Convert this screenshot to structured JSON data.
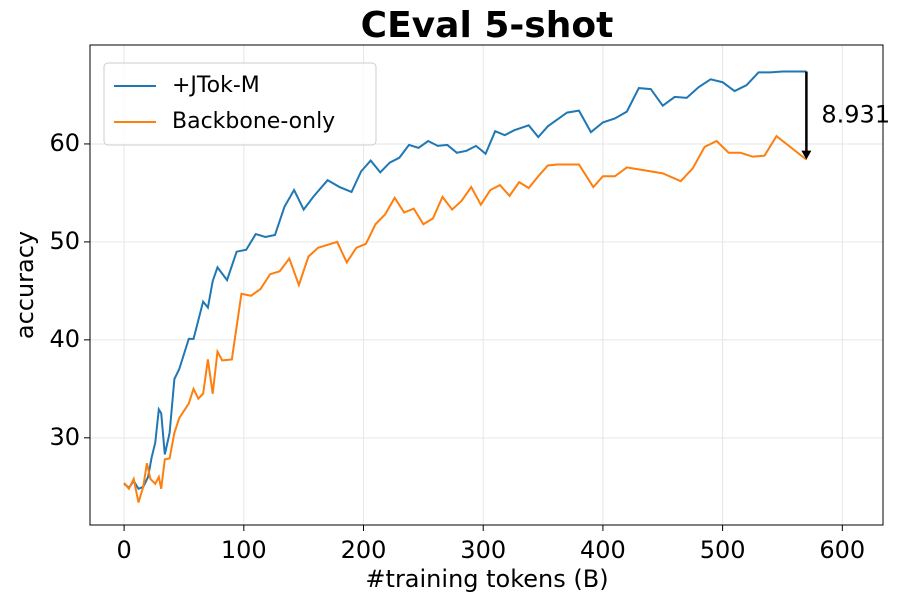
{
  "chart_data": {
    "type": "line",
    "title": "CEval 5-shot",
    "x_label": "#training tokens (B)",
    "y_label": "accuracy",
    "xlim": [
      -28.5,
      634
    ],
    "ylim": [
      21.1,
      70.1
    ],
    "xticks": [
      0,
      100,
      200,
      300,
      400,
      500,
      600
    ],
    "yticks": [
      30,
      40,
      50,
      60
    ],
    "grid": true,
    "legend": "upper left",
    "annotation": "8.931",
    "series": [
      {
        "name": "+JTok-M",
        "color": "#1f77b4",
        "x": [
          0,
          4,
          8,
          12,
          16,
          20,
          23,
          26,
          29,
          31,
          34,
          38,
          42,
          46,
          54,
          58,
          66,
          70,
          74,
          78,
          86,
          94,
          102,
          110,
          118,
          126,
          134,
          142,
          150,
          158,
          170,
          180,
          190,
          198,
          206,
          214,
          222,
          230,
          238,
          246,
          254,
          262,
          270,
          278,
          286,
          294,
          302,
          310,
          318,
          326,
          338,
          346,
          354,
          362,
          370,
          380,
          390,
          400,
          410,
          420,
          430,
          440,
          450,
          460,
          470,
          480,
          490,
          500,
          510,
          520,
          530,
          540,
          550,
          570
        ],
        "values": [
          25.3,
          24.9,
          25.6,
          24.8,
          25.0,
          26.0,
          28.0,
          29.5,
          32.9,
          32.5,
          28.3,
          30.5,
          36.0,
          37.0,
          40.1,
          40.1,
          43.9,
          43.3,
          46.0,
          47.4,
          46.1,
          49.0,
          49.2,
          50.8,
          50.5,
          50.7,
          53.6,
          55.3,
          53.3,
          54.6,
          56.3,
          55.6,
          55.1,
          57.2,
          58.3,
          57.1,
          58.1,
          58.6,
          59.9,
          59.6,
          60.3,
          59.8,
          59.9,
          59.1,
          59.3,
          59.8,
          59.0,
          61.3,
          60.9,
          61.4,
          61.9,
          60.7,
          61.8,
          62.5,
          63.2,
          63.4,
          61.2,
          62.2,
          62.6,
          63.3,
          65.7,
          65.6,
          63.9,
          64.8,
          64.7,
          65.8,
          66.6,
          66.3,
          65.4,
          66.0,
          67.3,
          67.3,
          67.4,
          67.4
        ]
      },
      {
        "name": "Backbone-only",
        "color": "#ff7f0e",
        "x": [
          0,
          4,
          8,
          12,
          16,
          19,
          22,
          26,
          29,
          31,
          34,
          38,
          42,
          46,
          54,
          58,
          62,
          66,
          70,
          74,
          78,
          82,
          90,
          98,
          106,
          114,
          122,
          130,
          138,
          146,
          154,
          162,
          170,
          178,
          186,
          194,
          202,
          210,
          218,
          226,
          234,
          242,
          250,
          258,
          266,
          274,
          282,
          290,
          298,
          306,
          314,
          322,
          330,
          338,
          346,
          354,
          362,
          380,
          392,
          400,
          410,
          420,
          430,
          450,
          465,
          475,
          485,
          495,
          505,
          515,
          525,
          535,
          545,
          570
        ],
        "values": [
          25.4,
          24.8,
          25.8,
          23.4,
          25.0,
          27.4,
          25.8,
          25.3,
          26.0,
          24.8,
          27.8,
          27.9,
          30.5,
          32.0,
          33.5,
          35.0,
          34.0,
          34.5,
          38.0,
          34.5,
          38.8,
          37.9,
          38.0,
          44.7,
          44.5,
          45.2,
          46.7,
          47.0,
          48.3,
          45.6,
          48.5,
          49.4,
          49.7,
          50.0,
          47.9,
          49.4,
          49.8,
          51.8,
          52.8,
          54.5,
          53.0,
          53.4,
          51.8,
          52.4,
          54.6,
          53.3,
          54.2,
          55.6,
          53.8,
          55.3,
          55.8,
          54.7,
          56.1,
          55.5,
          56.7,
          57.8,
          57.9,
          57.9,
          55.6,
          56.7,
          56.7,
          57.6,
          57.4,
          57.0,
          56.2,
          57.5,
          59.7,
          60.3,
          59.1,
          59.1,
          58.7,
          58.8,
          60.8,
          58.4
        ]
      }
    ]
  }
}
